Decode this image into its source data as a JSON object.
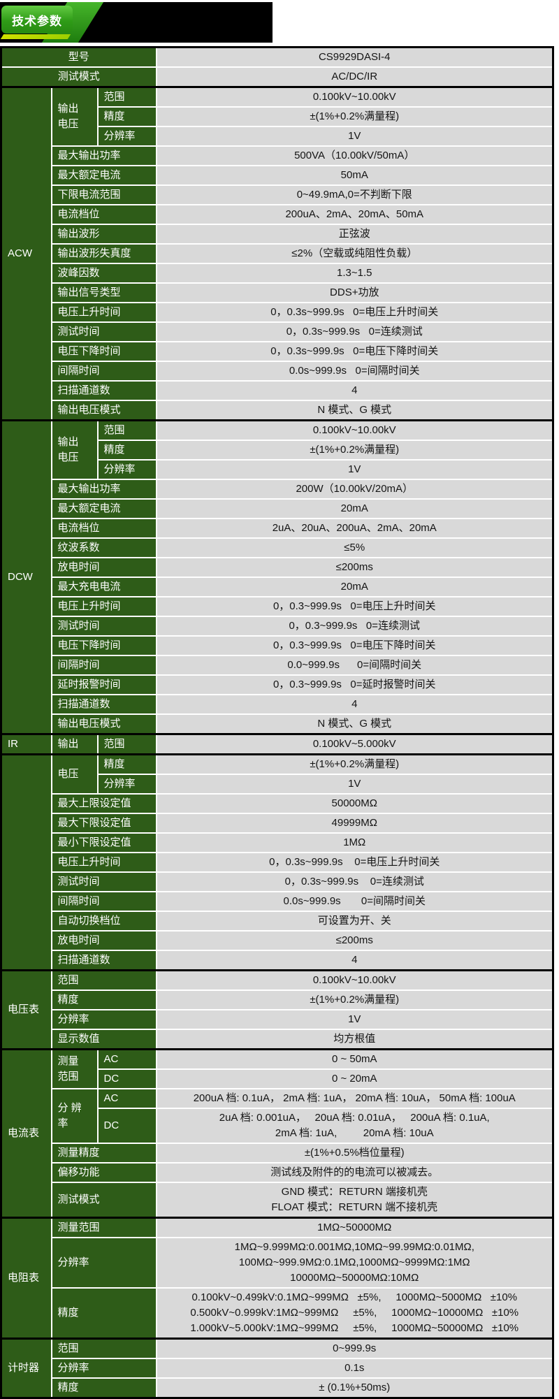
{
  "banner": {
    "label": "技术参数"
  },
  "colors": {
    "label_green": "#2e5c18",
    "value_gray": "#d9d9d9",
    "banner_green_light": "#63cb43",
    "banner_green_dark": "#278a12",
    "banner_yellow": "#cfe000",
    "section_border": "#000000"
  },
  "table": {
    "rows": [
      {
        "sec": true,
        "cells": [
          {
            "t": "型号",
            "cls": "l",
            "c": 3,
            "align": "c"
          },
          {
            "t": "CS9929DASI-4",
            "cls": "v"
          }
        ]
      },
      {
        "cells": [
          {
            "t": "测试模式",
            "cls": "l",
            "c": 3,
            "align": "c"
          },
          {
            "t": "AC/DC/IR",
            "cls": "v"
          }
        ]
      },
      {
        "sec": true,
        "cells": [
          {
            "t": "ACW",
            "cls": "g",
            "r": 17
          },
          {
            "t": "输出\n电压",
            "cls": "l",
            "r": 3
          },
          {
            "t": "范围",
            "cls": "l"
          },
          {
            "t": "0.100kV~10.00kV",
            "cls": "v"
          }
        ]
      },
      {
        "cells": [
          {
            "t": "精度",
            "cls": "l"
          },
          {
            "t": "±(1%+0.2%满量程)",
            "cls": "v"
          }
        ]
      },
      {
        "cells": [
          {
            "t": "分辨率",
            "cls": "l"
          },
          {
            "t": "1V",
            "cls": "v"
          }
        ]
      },
      {
        "cells": [
          {
            "t": "最大输出功率",
            "cls": "l",
            "c": 2
          },
          {
            "t": "500VA（10.00kV/50mA）",
            "cls": "v"
          }
        ]
      },
      {
        "cells": [
          {
            "t": "最大额定电流",
            "cls": "l",
            "c": 2
          },
          {
            "t": "50mA",
            "cls": "v"
          }
        ]
      },
      {
        "cells": [
          {
            "t": "下限电流范围",
            "cls": "l",
            "c": 2
          },
          {
            "t": "0~49.9mA,0=不判断下限",
            "cls": "v"
          }
        ]
      },
      {
        "cells": [
          {
            "t": "电流档位",
            "cls": "l",
            "c": 2
          },
          {
            "t": "200uA、2mA、20mA、50mA",
            "cls": "v"
          }
        ]
      },
      {
        "cells": [
          {
            "t": "输出波形",
            "cls": "l",
            "c": 2
          },
          {
            "t": "正弦波",
            "cls": "v"
          }
        ]
      },
      {
        "cells": [
          {
            "t": "输出波形失真度",
            "cls": "l",
            "c": 2
          },
          {
            "t": "≤2%（空载或纯阻性负载）",
            "cls": "v"
          }
        ]
      },
      {
        "cells": [
          {
            "t": "波峰因数",
            "cls": "l",
            "c": 2
          },
          {
            "t": "1.3~1.5",
            "cls": "v"
          }
        ]
      },
      {
        "cells": [
          {
            "t": "输出信号类型",
            "cls": "l",
            "c": 2
          },
          {
            "t": "DDS+功放",
            "cls": "v"
          }
        ]
      },
      {
        "cells": [
          {
            "t": "电压上升时间",
            "cls": "l",
            "c": 2
          },
          {
            "t": "0，0.3s~999.9s   0=电压上升时间关",
            "cls": "v"
          }
        ]
      },
      {
        "cells": [
          {
            "t": "测试时间",
            "cls": "l",
            "c": 2
          },
          {
            "t": "0，0.3s~999.9s   0=连续测试",
            "cls": "v"
          }
        ]
      },
      {
        "cells": [
          {
            "t": "电压下降时间",
            "cls": "l",
            "c": 2
          },
          {
            "t": "0，0.3s~999.9s   0=电压下降时间关",
            "cls": "v"
          }
        ]
      },
      {
        "cells": [
          {
            "t": "间隔时间",
            "cls": "l",
            "c": 2
          },
          {
            "t": "0.0s~999.9s   0=间隔时间关",
            "cls": "v"
          }
        ]
      },
      {
        "cells": [
          {
            "t": "扫描通道数",
            "cls": "l",
            "c": 2
          },
          {
            "t": "4",
            "cls": "v"
          }
        ]
      },
      {
        "cells": [
          {
            "t": "输出电压模式",
            "cls": "l",
            "c": 2
          },
          {
            "t": "N 模式、G 模式",
            "cls": "v"
          }
        ]
      },
      {
        "sec": true,
        "cells": [
          {
            "t": "DCW",
            "cls": "g",
            "r": 16
          },
          {
            "t": "输出\n电压",
            "cls": "l",
            "r": 3
          },
          {
            "t": "范围",
            "cls": "l"
          },
          {
            "t": "0.100kV~10.00kV",
            "cls": "v"
          }
        ]
      },
      {
        "cells": [
          {
            "t": "精度",
            "cls": "l"
          },
          {
            "t": "±(1%+0.2%满量程)",
            "cls": "v"
          }
        ]
      },
      {
        "cells": [
          {
            "t": "分辨率",
            "cls": "l"
          },
          {
            "t": "1V",
            "cls": "v"
          }
        ]
      },
      {
        "cells": [
          {
            "t": "最大输出功率",
            "cls": "l",
            "c": 2
          },
          {
            "t": "200W（10.00kV/20mA）",
            "cls": "v"
          }
        ]
      },
      {
        "cells": [
          {
            "t": "最大额定电流",
            "cls": "l",
            "c": 2
          },
          {
            "t": "20mA",
            "cls": "v"
          }
        ]
      },
      {
        "cells": [
          {
            "t": "电流档位",
            "cls": "l",
            "c": 2
          },
          {
            "t": "2uA、20uA、200uA、2mA、20mA",
            "cls": "v"
          }
        ]
      },
      {
        "cells": [
          {
            "t": "纹波系数",
            "cls": "l",
            "c": 2
          },
          {
            "t": "≤5%",
            "cls": "v"
          }
        ]
      },
      {
        "cells": [
          {
            "t": "放电时间",
            "cls": "l",
            "c": 2
          },
          {
            "t": "≤200ms",
            "cls": "v"
          }
        ]
      },
      {
        "cells": [
          {
            "t": "最大充电电流",
            "cls": "l",
            "c": 2
          },
          {
            "t": "20mA",
            "cls": "v"
          }
        ]
      },
      {
        "cells": [
          {
            "t": "电压上升时间",
            "cls": "l",
            "c": 2
          },
          {
            "t": "0，0.3~999.9s   0=电压上升时间关",
            "cls": "v"
          }
        ]
      },
      {
        "cells": [
          {
            "t": "测试时间",
            "cls": "l",
            "c": 2
          },
          {
            "t": "0，0.3~999.9s   0=连续测试",
            "cls": "v"
          }
        ]
      },
      {
        "cells": [
          {
            "t": "电压下降时间",
            "cls": "l",
            "c": 2
          },
          {
            "t": "0，0.3~999.9s   0=电压下降时间关",
            "cls": "v"
          }
        ]
      },
      {
        "cells": [
          {
            "t": "间隔时间",
            "cls": "l",
            "c": 2
          },
          {
            "t": "0.0~999.9s      0=间隔时间关",
            "cls": "v"
          }
        ]
      },
      {
        "cells": [
          {
            "t": "延时报警时间",
            "cls": "l",
            "c": 2
          },
          {
            "t": "0，0.3~999.9s   0=延时报警时间关",
            "cls": "v"
          }
        ]
      },
      {
        "cells": [
          {
            "t": "扫描通道数",
            "cls": "l",
            "c": 2
          },
          {
            "t": "4",
            "cls": "v"
          }
        ]
      },
      {
        "cells": [
          {
            "t": "输出电压模式",
            "cls": "l",
            "c": 2
          },
          {
            "t": "N 模式、G 模式",
            "cls": "v"
          }
        ]
      },
      {
        "sec": true,
        "cells": [
          {
            "t": "IR",
            "cls": "g"
          },
          {
            "t": "输出",
            "cls": "l"
          },
          {
            "t": "范围",
            "cls": "l"
          },
          {
            "t": "0.100kV~5.000kV",
            "cls": "v"
          }
        ]
      },
      {
        "sec": true,
        "cells": [
          {
            "t": "",
            "cls": "g",
            "r": 11
          },
          {
            "t": "电压",
            "cls": "l",
            "r": 2
          },
          {
            "t": "精度",
            "cls": "l"
          },
          {
            "t": "±(1%+0.2%满量程)",
            "cls": "v"
          }
        ]
      },
      {
        "cells": [
          {
            "t": "分辨率",
            "cls": "l"
          },
          {
            "t": "1V",
            "cls": "v"
          }
        ]
      },
      {
        "cells": [
          {
            "t": "最大上限设定值",
            "cls": "l",
            "c": 2
          },
          {
            "t": "50000MΩ",
            "cls": "v"
          }
        ]
      },
      {
        "cells": [
          {
            "t": "最大下限设定值",
            "cls": "l",
            "c": 2
          },
          {
            "t": "49999MΩ",
            "cls": "v"
          }
        ]
      },
      {
        "cells": [
          {
            "t": "最小下限设定值",
            "cls": "l",
            "c": 2
          },
          {
            "t": "1MΩ",
            "cls": "v"
          }
        ]
      },
      {
        "cells": [
          {
            "t": "电压上升时间",
            "cls": "l",
            "c": 2
          },
          {
            "t": "0，0.3s~999.9s    0=电压上升时间关",
            "cls": "v"
          }
        ]
      },
      {
        "cells": [
          {
            "t": "测试时间",
            "cls": "l",
            "c": 2
          },
          {
            "t": "0，0.3s~999.9s    0=连续测试",
            "cls": "v"
          }
        ]
      },
      {
        "cells": [
          {
            "t": "间隔时间",
            "cls": "l",
            "c": 2
          },
          {
            "t": "0.0s~999.9s       0=间隔时间关",
            "cls": "v"
          }
        ]
      },
      {
        "cells": [
          {
            "t": "自动切换档位",
            "cls": "l",
            "c": 2
          },
          {
            "t": "可设置为开、关",
            "cls": "v"
          }
        ]
      },
      {
        "cells": [
          {
            "t": "放电时间",
            "cls": "l",
            "c": 2
          },
          {
            "t": "≤200ms",
            "cls": "v"
          }
        ]
      },
      {
        "cells": [
          {
            "t": "扫描通道数",
            "cls": "l",
            "c": 2
          },
          {
            "t": "4",
            "cls": "v"
          }
        ]
      },
      {
        "sec": true,
        "cells": [
          {
            "t": "电压表",
            "cls": "g",
            "r": 4
          },
          {
            "t": "范围",
            "cls": "l",
            "c": 2
          },
          {
            "t": "0.100kV~10.00kV",
            "cls": "v"
          }
        ]
      },
      {
        "cells": [
          {
            "t": "精度",
            "cls": "l",
            "c": 2
          },
          {
            "t": "±(1%+0.2%满量程)",
            "cls": "v"
          }
        ]
      },
      {
        "cells": [
          {
            "t": "分辨率",
            "cls": "l",
            "c": 2
          },
          {
            "t": "1V",
            "cls": "v"
          }
        ]
      },
      {
        "cells": [
          {
            "t": "显示数值",
            "cls": "l",
            "c": 2
          },
          {
            "t": "均方根值",
            "cls": "v"
          }
        ]
      },
      {
        "sec": true,
        "cells": [
          {
            "t": "电流表",
            "cls": "g",
            "r": 7
          },
          {
            "t": "测量\n范围",
            "cls": "l",
            "r": 2
          },
          {
            "t": "AC",
            "cls": "l"
          },
          {
            "t": "0 ~ 50mA",
            "cls": "v"
          }
        ]
      },
      {
        "cells": [
          {
            "t": "DC",
            "cls": "l"
          },
          {
            "t": "0 ~ 20mA",
            "cls": "v"
          }
        ]
      },
      {
        "cells": [
          {
            "t": "分 辨\n率",
            "cls": "l",
            "r": 2
          },
          {
            "t": "AC",
            "cls": "l"
          },
          {
            "t": "200uA 档: 0.1uA， 2mA 档: 1uA， 20mA 档: 10uA， 50mA 档: 100uA",
            "cls": "v"
          }
        ]
      },
      {
        "cells": [
          {
            "t": "DC",
            "cls": "l"
          },
          {
            "t": "2uA 档: 0.001uA，   20uA 档: 0.01uA，   200uA 档: 0.1uA,\n2mA 档: 1uA,         20mA 档: 10uA",
            "cls": "v"
          }
        ]
      },
      {
        "cells": [
          {
            "t": "测量精度",
            "cls": "l",
            "c": 2
          },
          {
            "t": "±(1%+0.5%档位量程)",
            "cls": "v"
          }
        ]
      },
      {
        "cells": [
          {
            "t": "偏移功能",
            "cls": "l",
            "c": 2
          },
          {
            "t": "测试线及附件的的电流可以被减去。",
            "cls": "v"
          }
        ]
      },
      {
        "cells": [
          {
            "t": "测试模式",
            "cls": "l",
            "c": 2
          },
          {
            "t": "GND 模式：RETURN 端接机壳\nFLOAT 模式：RETURN 端不接机壳",
            "cls": "v"
          }
        ]
      },
      {
        "sec": true,
        "cells": [
          {
            "t": "电阻表",
            "cls": "g",
            "r": 3
          },
          {
            "t": "测量范围",
            "cls": "l",
            "c": 2
          },
          {
            "t": "1MΩ~50000MΩ",
            "cls": "v"
          }
        ]
      },
      {
        "cells": [
          {
            "t": "分辨率",
            "cls": "l",
            "c": 2
          },
          {
            "t": "1MΩ~9.999MΩ:0.001MΩ,10MΩ~99.99MΩ:0.01MΩ,\n100MΩ~999.9MΩ:0.1MΩ,1000MΩ~9999MΩ:1MΩ\n10000MΩ~50000MΩ:10MΩ",
            "cls": "v"
          }
        ]
      },
      {
        "cells": [
          {
            "t": "精度",
            "cls": "l",
            "c": 2
          },
          {
            "t": "0.100kV~0.499kV:0.1MΩ~999MΩ   ±5%,     1000MΩ~5000MΩ   ±10%\n0.500kV~0.999kV:1MΩ~999MΩ     ±5%,     1000MΩ~10000MΩ   ±10%\n1.000kV~5.000kV:1MΩ~999MΩ     ±5%,     1000MΩ~50000MΩ   ±10%",
            "cls": "v"
          }
        ]
      },
      {
        "sec": true,
        "cells": [
          {
            "t": "计时器",
            "cls": "g",
            "r": 3
          },
          {
            "t": "范围",
            "cls": "l",
            "c": 2
          },
          {
            "t": "0~999.9s",
            "cls": "v"
          }
        ]
      },
      {
        "cells": [
          {
            "t": "分辨率",
            "cls": "l",
            "c": 2
          },
          {
            "t": "0.1s",
            "cls": "v"
          }
        ]
      },
      {
        "cells": [
          {
            "t": "精度",
            "cls": "l",
            "c": 2
          },
          {
            "t": "± (0.1%+50ms)",
            "cls": "v"
          }
        ]
      }
    ]
  }
}
